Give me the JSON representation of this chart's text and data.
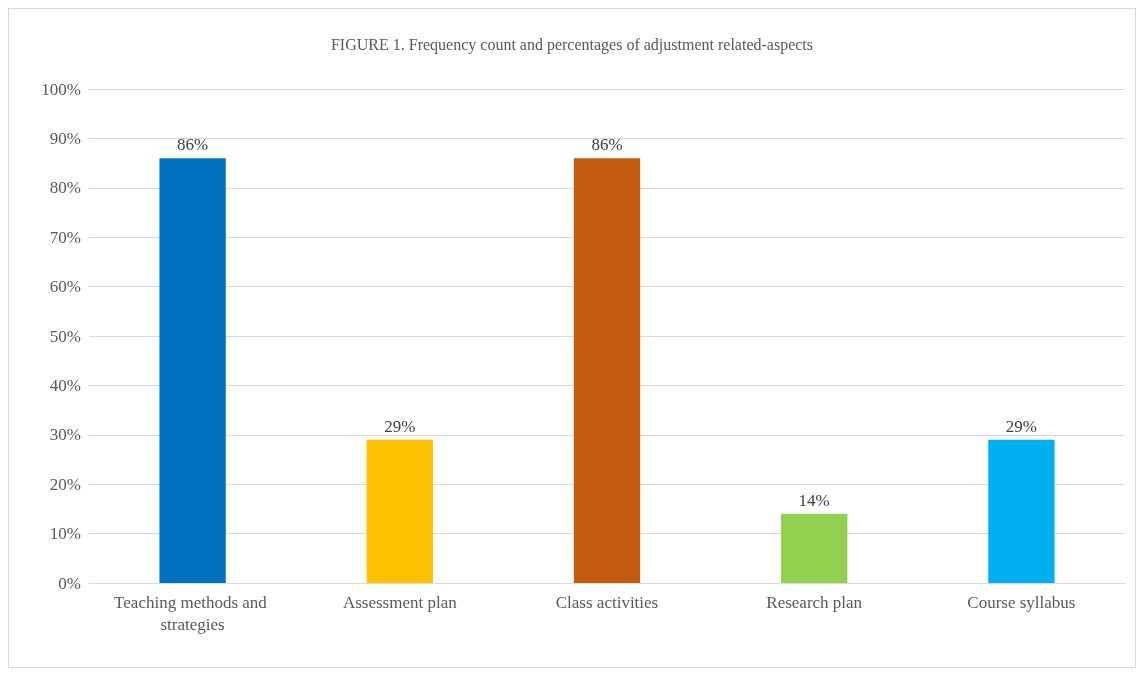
{
  "chart_data": {
    "type": "bar",
    "title": "FIGURE 1. Frequency count and percentages of adjustment related-aspects",
    "categories": [
      "Teaching methods and strategies",
      "Assessment plan",
      "Class activities",
      "Research plan",
      "Course syllabus"
    ],
    "values": [
      86,
      29,
      86,
      14,
      29
    ],
    "colors": [
      "#0070c0",
      "#ffc000",
      "#c55a11",
      "#92d050",
      "#00b0f0"
    ],
    "value_labels": [
      "86%",
      "29%",
      "86%",
      "14%",
      "29%"
    ],
    "ylim": [
      0,
      100
    ],
    "yticks": [
      {
        "value": 0,
        "label": "0%"
      },
      {
        "value": 10,
        "label": "10%"
      },
      {
        "value": 20,
        "label": "20%"
      },
      {
        "value": 30,
        "label": "30%"
      },
      {
        "value": 40,
        "label": "40%"
      },
      {
        "value": 50,
        "label": "50%"
      },
      {
        "value": 60,
        "label": "60%"
      },
      {
        "value": 70,
        "label": "70%"
      },
      {
        "value": 80,
        "label": "80%"
      },
      {
        "value": 90,
        "label": "90%"
      },
      {
        "value": 100,
        "label": "100%"
      }
    ],
    "grid": "y"
  }
}
